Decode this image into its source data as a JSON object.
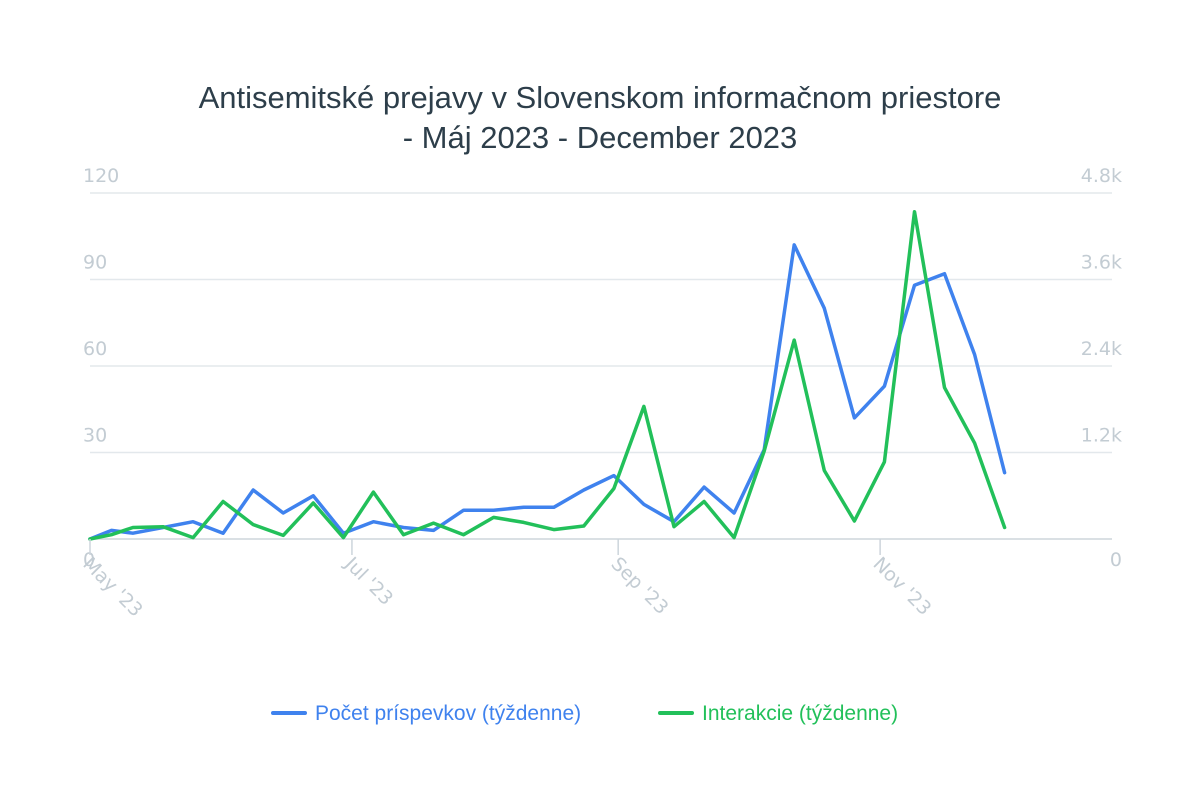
{
  "chart_data": {
    "type": "line",
    "title_lines": [
      "Antisemitské prejavy v Slovenskom informačnom priestore",
      "- Máj 2023 - December 2023"
    ],
    "x_tick_labels": [
      "May '23",
      "Jul '23",
      "Sep '23",
      "Nov '23"
    ],
    "x_tick_dates": [
      "2023-05-01",
      "2023-07-01",
      "2023-09-01",
      "2023-11-01"
    ],
    "x_range": [
      "2023-05-01",
      "2023-12-25"
    ],
    "y_left": {
      "range": [
        0,
        120
      ],
      "ticks": [
        0,
        30,
        60,
        90,
        120
      ],
      "tick_labels": [
        "0",
        "30",
        "60",
        "90",
        "120"
      ]
    },
    "y_right": {
      "range": [
        0,
        4800
      ],
      "ticks": [
        0,
        1200,
        2400,
        3600,
        4800
      ],
      "tick_labels": [
        "0",
        "1.2k",
        "2.4k",
        "3.6k",
        "4.8k"
      ]
    },
    "grid": true,
    "legend_position": "bottom-center",
    "x": [
      "2023-05-01",
      "2023-05-06",
      "2023-05-11",
      "2023-05-18",
      "2023-05-25",
      "2023-06-01",
      "2023-06-08",
      "2023-06-15",
      "2023-06-22",
      "2023-06-29",
      "2023-07-06",
      "2023-07-13",
      "2023-07-20",
      "2023-07-27",
      "2023-08-03",
      "2023-08-10",
      "2023-08-17",
      "2023-08-24",
      "2023-08-31",
      "2023-09-07",
      "2023-09-14",
      "2023-09-21",
      "2023-09-28",
      "2023-10-05",
      "2023-10-12",
      "2023-10-19",
      "2023-10-26",
      "2023-11-02",
      "2023-11-09",
      "2023-11-16",
      "2023-11-23",
      "2023-11-30",
      "2023-12-07"
    ],
    "series": [
      {
        "name": "Počet príspevkov (týždenne)",
        "color": "#3f82ee",
        "axis": "left",
        "values": [
          0,
          3,
          2,
          4,
          6,
          2,
          17,
          9,
          15,
          2,
          6,
          4,
          3,
          10,
          10,
          11,
          11,
          17,
          22,
          12,
          6,
          18,
          9,
          31,
          102,
          80,
          42,
          53,
          88,
          92,
          64,
          23,
          null
        ]
      },
      {
        "name": "Interakcie (týždenne)",
        "color": "#22c05a",
        "axis": "right",
        "values": [
          0,
          60,
          160,
          170,
          20,
          520,
          200,
          50,
          500,
          20,
          650,
          60,
          220,
          60,
          300,
          230,
          130,
          180,
          700,
          1840,
          170,
          520,
          20,
          1220,
          2760,
          950,
          250,
          1070,
          4540,
          2100,
          1330,
          160,
          null
        ]
      }
    ]
  }
}
